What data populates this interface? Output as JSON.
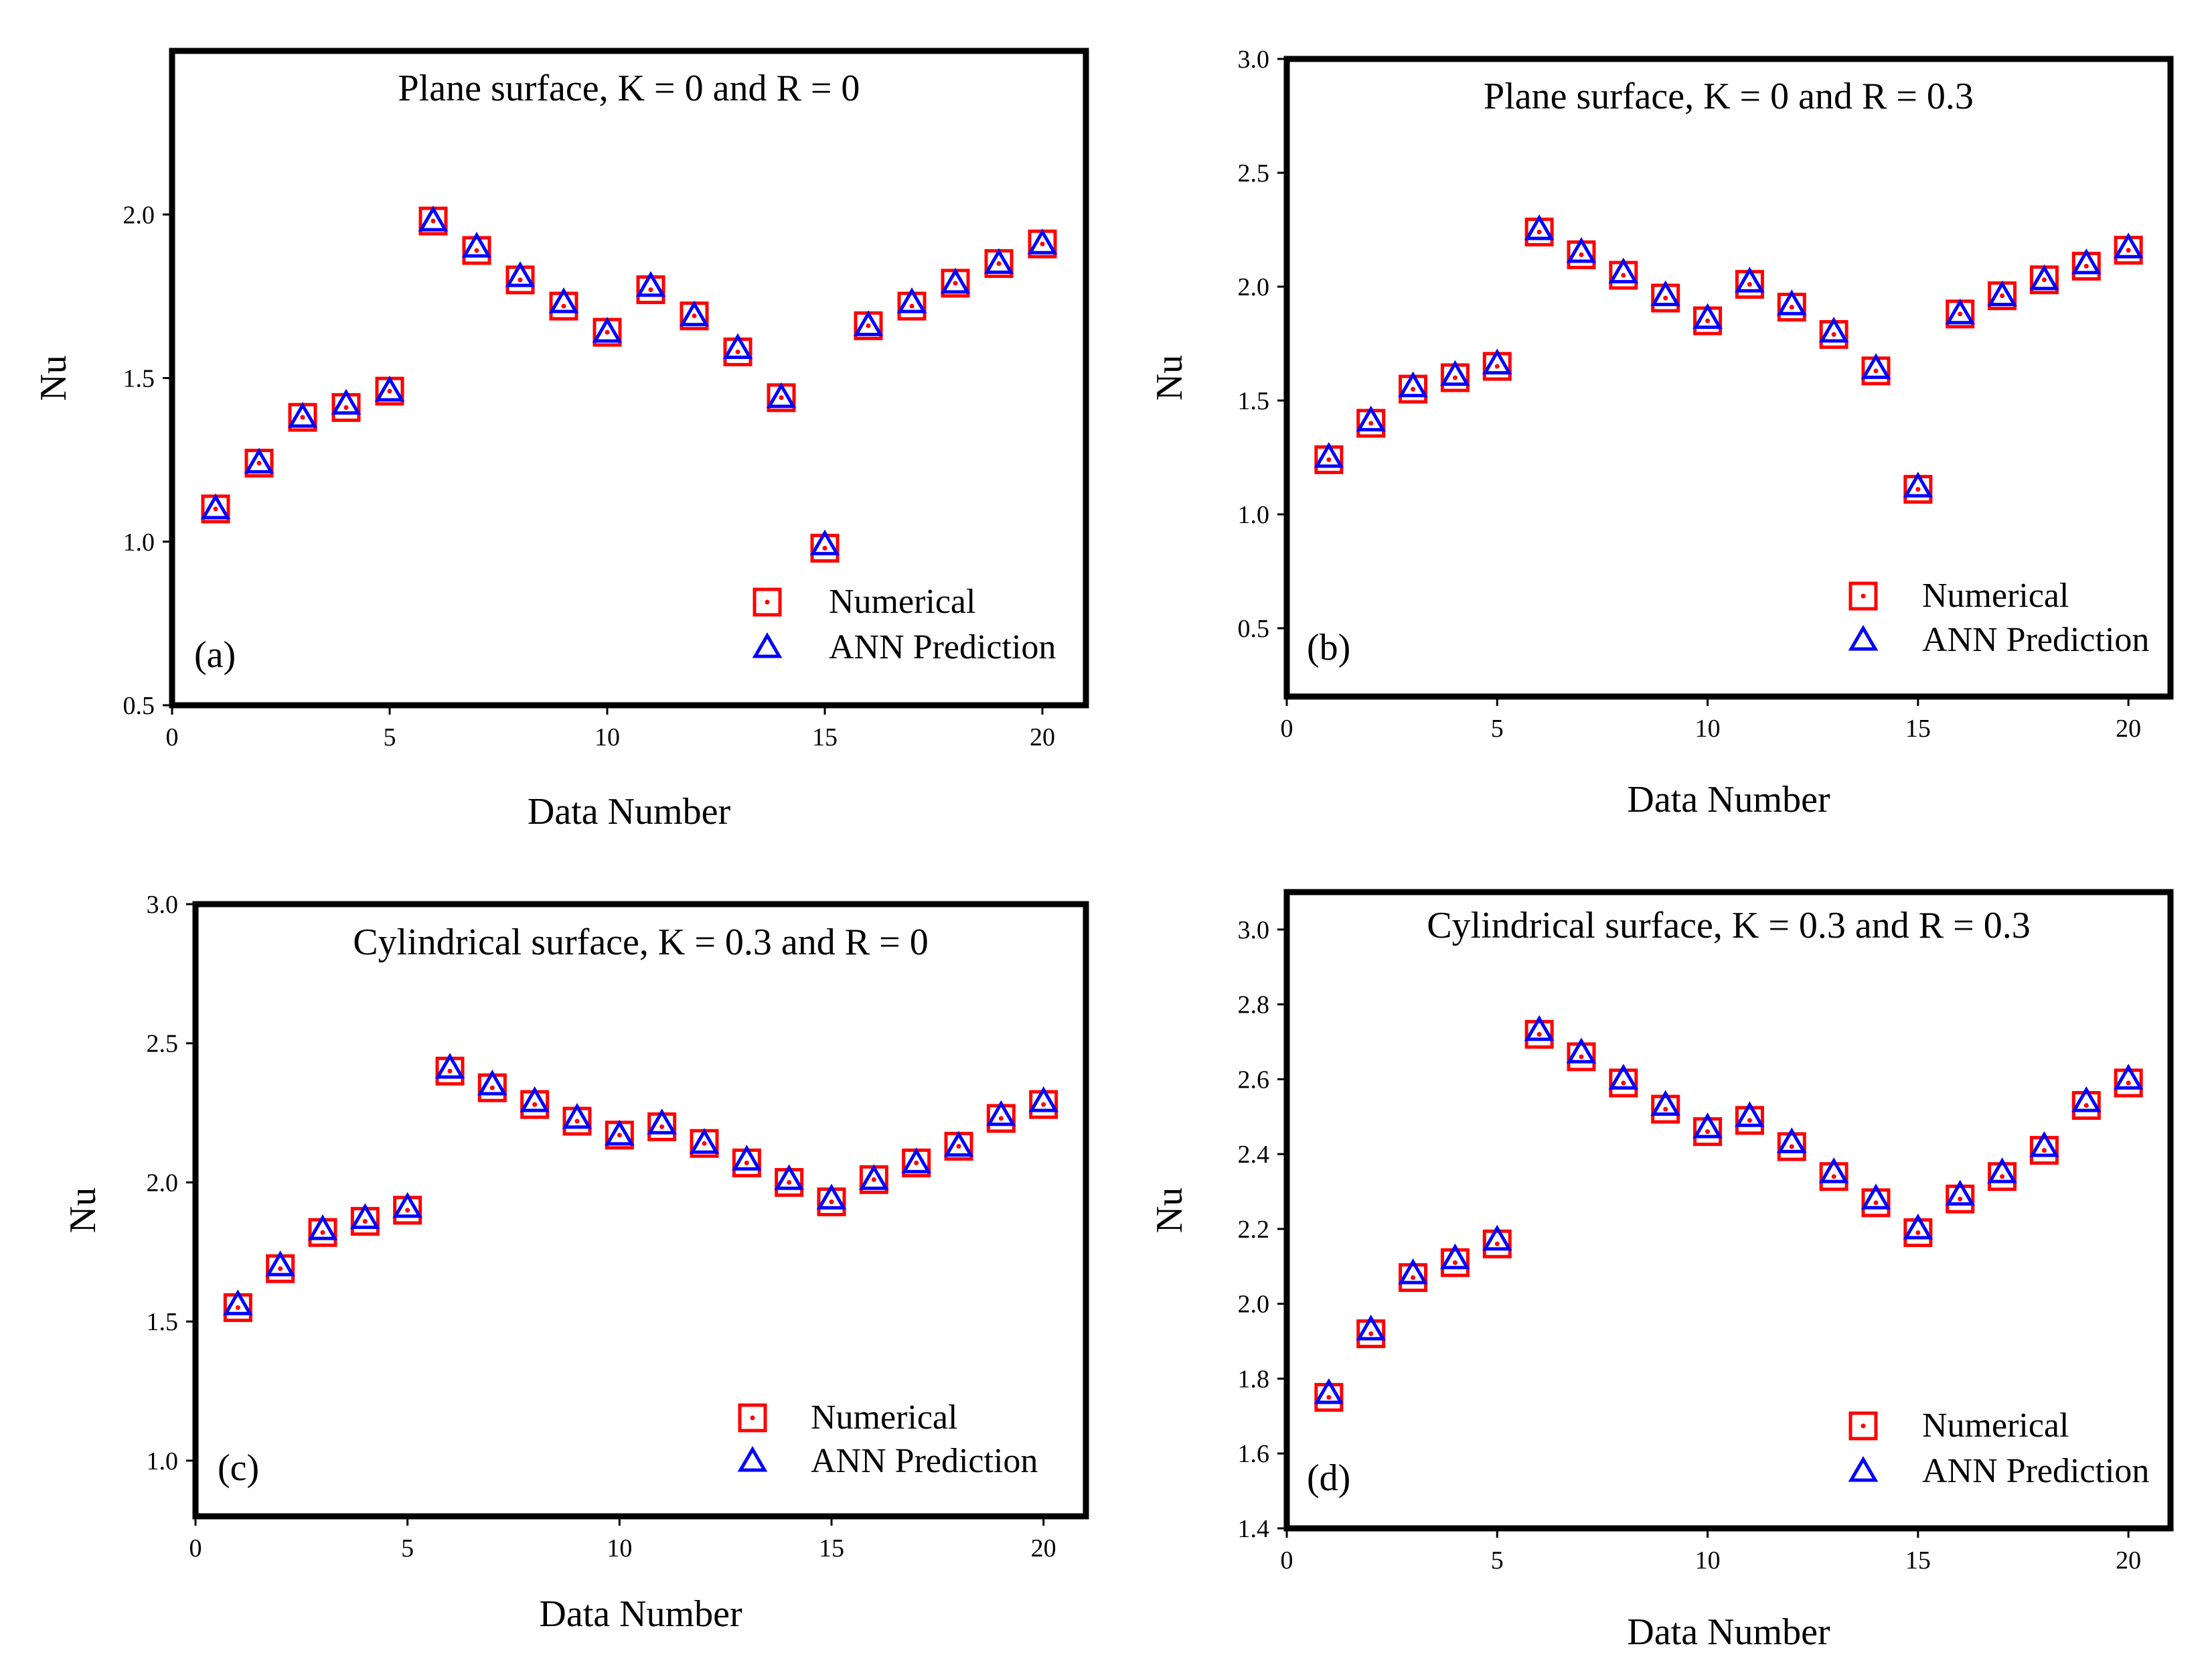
{
  "legend": {
    "numerical": "Numerical",
    "ann": "ANN Prediction"
  },
  "colors": {
    "numerical": "#ff0000",
    "ann": "#0000ff",
    "frame": "#000000"
  },
  "chart_data": [
    {
      "id": "a",
      "type": "scatter",
      "letter": "(a)",
      "title": "Plane surface, K = 0 and R = 0",
      "xlabel": "Data Number",
      "ylabel": "Nu",
      "xlim": [
        0,
        21
      ],
      "ylim": [
        0.5,
        2.5
      ],
      "xticks": [
        0,
        5,
        10,
        15,
        20
      ],
      "yticks": [
        0.5,
        1.0,
        1.5,
        2.0
      ],
      "ytick_labels": [
        "0.5",
        "1.0",
        "1.5",
        "2.0"
      ],
      "x": [
        1,
        2,
        3,
        4,
        5,
        6,
        7,
        8,
        9,
        10,
        11,
        12,
        13,
        14,
        15,
        16,
        17,
        18,
        19,
        20
      ],
      "series": [
        {
          "name": "Numerical",
          "marker": "square",
          "values": [
            1.1,
            1.24,
            1.38,
            1.41,
            1.46,
            1.98,
            1.89,
            1.8,
            1.72,
            1.64,
            1.77,
            1.69,
            1.58,
            1.44,
            0.98,
            1.66,
            1.72,
            1.79,
            1.85,
            1.91
          ]
        },
        {
          "name": "ANN Prediction",
          "marker": "triangle",
          "values": [
            1.1,
            1.24,
            1.38,
            1.42,
            1.46,
            1.98,
            1.9,
            1.81,
            1.73,
            1.64,
            1.78,
            1.69,
            1.59,
            1.44,
            0.99,
            1.66,
            1.73,
            1.79,
            1.85,
            1.91
          ]
        }
      ]
    },
    {
      "id": "b",
      "type": "scatter",
      "letter": "(b)",
      "title": "Plane surface, K = 0 and R = 0.3",
      "xlabel": "Data Number",
      "ylabel": "Nu",
      "xlim": [
        0,
        21
      ],
      "ylim": [
        0.2,
        3.0
      ],
      "xticks": [
        0,
        5,
        10,
        15,
        20
      ],
      "yticks": [
        0.5,
        1.0,
        1.5,
        2.0,
        2.5,
        3.0
      ],
      "ytick_labels": [
        "0.5",
        "1.0",
        "1.5",
        "2.0",
        "2.5",
        "3.0"
      ],
      "x": [
        1,
        2,
        3,
        4,
        5,
        6,
        7,
        8,
        9,
        10,
        11,
        12,
        13,
        14,
        15,
        16,
        17,
        18,
        19,
        20
      ],
      "series": [
        {
          "name": "Numerical",
          "marker": "square",
          "values": [
            1.24,
            1.4,
            1.55,
            1.6,
            1.65,
            2.24,
            2.14,
            2.05,
            1.95,
            1.85,
            2.01,
            1.91,
            1.79,
            1.63,
            1.11,
            1.88,
            1.96,
            2.03,
            2.09,
            2.16
          ]
        },
        {
          "name": "ANN Prediction",
          "marker": "triangle",
          "values": [
            1.25,
            1.41,
            1.56,
            1.61,
            1.66,
            2.25,
            2.15,
            2.06,
            1.96,
            1.86,
            2.02,
            1.92,
            1.8,
            1.64,
            1.12,
            1.88,
            1.96,
            2.03,
            2.1,
            2.17
          ]
        }
      ]
    },
    {
      "id": "c",
      "type": "scatter",
      "letter": "(c)",
      "title": "Cylindrical surface, K = 0.3 and R = 0",
      "xlabel": "Data Number",
      "ylabel": "Nu",
      "xlim": [
        0,
        21
      ],
      "ylim": [
        0.8,
        3.0
      ],
      "xticks": [
        0,
        5,
        10,
        15,
        20
      ],
      "yticks": [
        1.0,
        1.5,
        2.0,
        2.5,
        3.0
      ],
      "ytick_labels": [
        "1.0",
        "1.5",
        "2.0",
        "2.5",
        "3.0"
      ],
      "x": [
        1,
        2,
        3,
        4,
        5,
        6,
        7,
        8,
        9,
        10,
        11,
        12,
        13,
        14,
        15,
        16,
        17,
        18,
        19,
        20
      ],
      "series": [
        {
          "name": "Numerical",
          "marker": "square",
          "values": [
            1.55,
            1.69,
            1.82,
            1.86,
            1.9,
            2.4,
            2.34,
            2.28,
            2.22,
            2.17,
            2.2,
            2.14,
            2.07,
            2.0,
            1.93,
            2.01,
            2.07,
            2.13,
            2.23,
            2.28
          ]
        },
        {
          "name": "ANN Prediction",
          "marker": "triangle",
          "values": [
            1.56,
            1.7,
            1.83,
            1.87,
            1.91,
            2.41,
            2.35,
            2.29,
            2.23,
            2.17,
            2.21,
            2.14,
            2.08,
            2.01,
            1.94,
            2.01,
            2.07,
            2.13,
            2.24,
            2.29
          ]
        }
      ]
    },
    {
      "id": "d",
      "type": "scatter",
      "letter": "(d)",
      "title": "Cylindrical surface, K = 0.3 and R = 0.3",
      "xlabel": "Data Number",
      "ylabel": "Nu",
      "xlim": [
        0,
        21
      ],
      "ylim": [
        1.4,
        3.1
      ],
      "xticks": [
        0,
        5,
        10,
        15,
        20
      ],
      "yticks": [
        1.4,
        1.6,
        1.8,
        2.0,
        2.2,
        2.4,
        2.6,
        2.8,
        3.0
      ],
      "ytick_labels": [
        "1.4",
        "1.6",
        "1.8",
        "2.0",
        "2.2",
        "2.4",
        "2.6",
        "2.8",
        "3.0"
      ],
      "x": [
        1,
        2,
        3,
        4,
        5,
        6,
        7,
        8,
        9,
        10,
        11,
        12,
        13,
        14,
        15,
        16,
        17,
        18,
        19,
        20
      ],
      "series": [
        {
          "name": "Numerical",
          "marker": "square",
          "values": [
            1.75,
            1.92,
            2.07,
            2.11,
            2.16,
            2.72,
            2.66,
            2.59,
            2.52,
            2.46,
            2.49,
            2.42,
            2.34,
            2.27,
            2.19,
            2.28,
            2.34,
            2.41,
            2.53,
            2.59
          ]
        },
        {
          "name": "ANN Prediction",
          "marker": "triangle",
          "values": [
            1.76,
            1.93,
            2.08,
            2.12,
            2.17,
            2.73,
            2.67,
            2.6,
            2.53,
            2.47,
            2.5,
            2.43,
            2.35,
            2.28,
            2.2,
            2.29,
            2.35,
            2.42,
            2.54,
            2.6
          ]
        }
      ]
    }
  ]
}
